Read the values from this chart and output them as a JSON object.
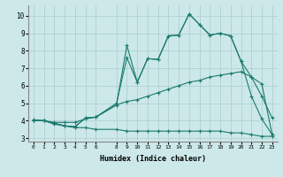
{
  "xlabel": "Humidex (Indice chaleur)",
  "bg_color": "#cce8e8",
  "line_color": "#1a7a6e",
  "grid_color": "#aacccc",
  "xlim": [
    -0.5,
    23.5
  ],
  "ylim": [
    2.8,
    10.6
  ],
  "xticks": [
    0,
    1,
    2,
    3,
    4,
    5,
    6,
    8,
    9,
    10,
    11,
    12,
    13,
    14,
    15,
    16,
    17,
    18,
    19,
    20,
    21,
    22,
    23
  ],
  "yticks": [
    3,
    4,
    5,
    6,
    7,
    8,
    9,
    10
  ],
  "lines": [
    {
      "x": [
        0,
        1,
        2,
        3,
        4,
        5,
        6,
        8,
        9,
        10,
        11,
        12,
        13,
        14,
        15,
        16,
        17,
        18,
        19,
        20,
        21,
        22,
        23
      ],
      "y": [
        4.0,
        4.0,
        3.8,
        3.7,
        3.6,
        3.6,
        3.5,
        3.5,
        3.4,
        3.4,
        3.4,
        3.4,
        3.4,
        3.4,
        3.4,
        3.4,
        3.4,
        3.4,
        3.3,
        3.3,
        3.2,
        3.1,
        3.1
      ]
    },
    {
      "x": [
        0,
        1,
        2,
        3,
        4,
        5,
        6,
        8,
        9,
        10,
        11,
        12,
        13,
        14,
        15,
        16,
        17,
        18,
        19,
        20,
        21,
        22,
        23
      ],
      "y": [
        4.0,
        4.0,
        3.9,
        3.9,
        3.9,
        4.1,
        4.2,
        4.9,
        5.1,
        5.2,
        5.4,
        5.6,
        5.8,
        6.0,
        6.2,
        6.3,
        6.5,
        6.6,
        6.7,
        6.8,
        6.5,
        6.1,
        3.2
      ]
    },
    {
      "x": [
        0,
        1,
        2,
        3,
        4,
        5,
        6,
        8,
        9,
        10,
        11,
        12,
        13,
        14,
        15,
        16,
        17,
        18,
        19,
        20,
        21,
        22,
        23
      ],
      "y": [
        4.0,
        4.0,
        3.85,
        3.7,
        3.65,
        4.15,
        4.2,
        5.0,
        7.6,
        6.2,
        7.55,
        7.5,
        8.85,
        8.9,
        10.1,
        9.5,
        8.9,
        9.0,
        8.85,
        7.4,
        6.5,
        5.4,
        4.15
      ]
    },
    {
      "x": [
        0,
        1,
        2,
        3,
        4,
        5,
        6,
        8,
        9,
        10,
        11,
        12,
        13,
        14,
        15,
        16,
        17,
        18,
        19,
        20,
        21,
        22,
        23
      ],
      "y": [
        4.05,
        4.0,
        3.85,
        3.7,
        3.65,
        4.15,
        4.2,
        4.9,
        8.3,
        6.2,
        7.55,
        7.5,
        8.85,
        8.9,
        10.1,
        9.5,
        8.9,
        9.0,
        8.85,
        7.4,
        5.4,
        4.1,
        3.2
      ]
    }
  ]
}
